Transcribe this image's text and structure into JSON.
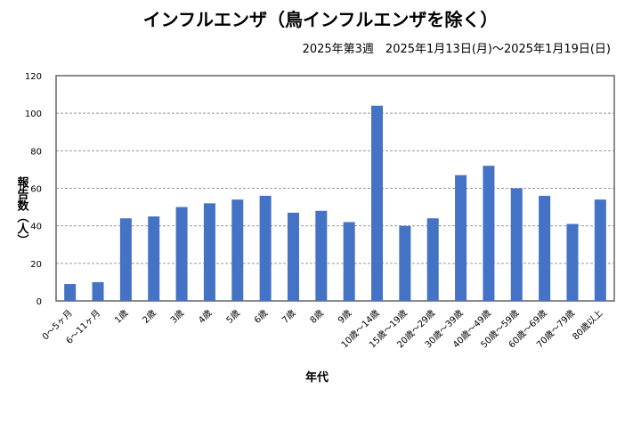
{
  "chart_data": {
    "type": "bar",
    "title": "インフルエンザ（鳥インフルエンザを除く）",
    "subtitle": "2025年第3週　2025年1月13日(月)～2025年1月19日(日)",
    "xlabel": "年代",
    "ylabel": "報告数（人）",
    "ylim": [
      0,
      120
    ],
    "yticks": [
      0,
      20,
      40,
      60,
      80,
      100,
      120
    ],
    "grid": true,
    "color": "#4472C4",
    "categories": [
      "0～5ヶ月",
      "6～11ヶ月",
      "1歳",
      "2歳",
      "3歳",
      "4歳",
      "5歳",
      "6歳",
      "7歳",
      "8歳",
      "9歳",
      "10歳～14歳",
      "15歳～19歳",
      "20歳～29歳",
      "30歳～39歳",
      "40歳～49歳",
      "50歳～59歳",
      "60歳～69歳",
      "70歳～79歳",
      "80歳以上"
    ],
    "values": [
      9,
      10,
      44,
      45,
      50,
      52,
      54,
      56,
      47,
      48,
      42,
      104,
      40,
      44,
      67,
      72,
      60,
      56,
      41,
      54
    ]
  }
}
